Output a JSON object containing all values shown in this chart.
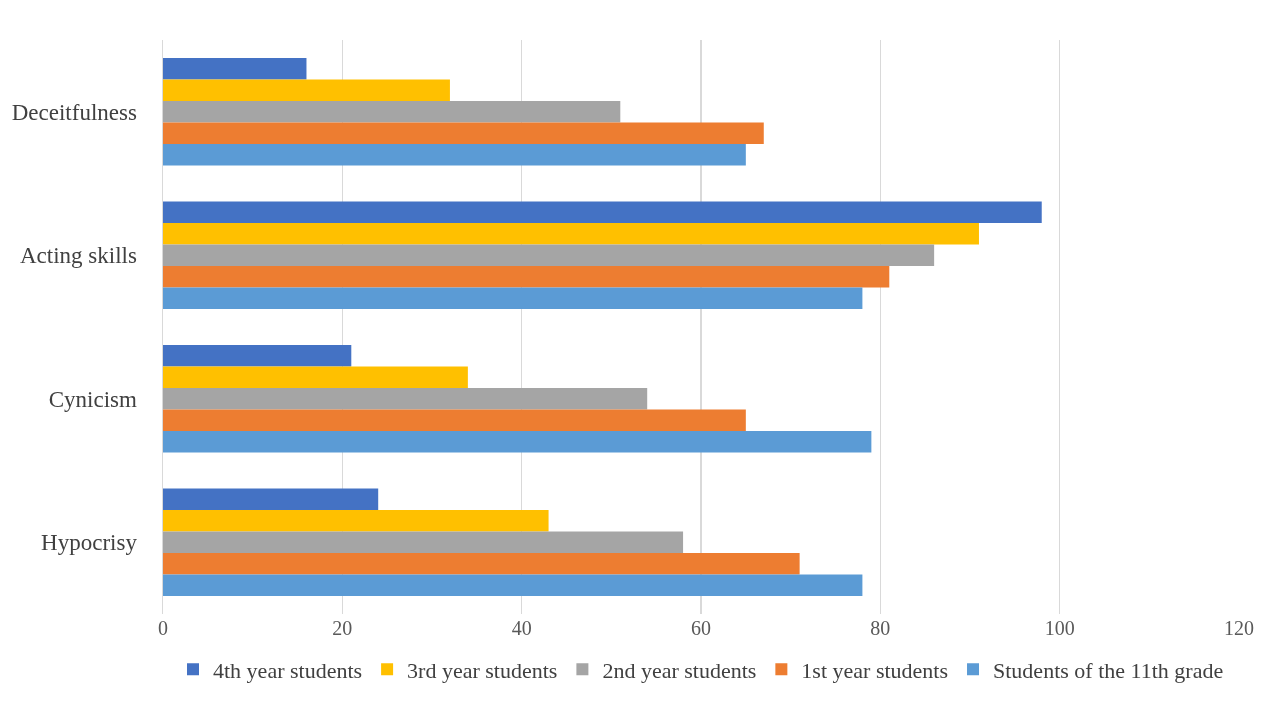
{
  "chart_data": {
    "type": "bar",
    "orientation": "horizontal",
    "categories": [
      "Deceitfulness",
      "Acting skills",
      "Cynicism",
      "Hypocrisy"
    ],
    "series": [
      {
        "name": "4th year students",
        "color": "#4472c4",
        "values": [
          16,
          98,
          21,
          24
        ]
      },
      {
        "name": "3rd year students",
        "color": "#ffc000",
        "values": [
          32,
          91,
          34,
          43
        ]
      },
      {
        "name": "2nd year students",
        "color": "#a5a5a5",
        "values": [
          51,
          86,
          54,
          58
        ]
      },
      {
        "name": "1st year students",
        "color": "#ed7d31",
        "values": [
          67,
          81,
          65,
          71
        ]
      },
      {
        "name": "Students of the 11th grade",
        "color": "#5b9bd5",
        "values": [
          65,
          78,
          79,
          78
        ]
      }
    ],
    "xlim": [
      0,
      120
    ],
    "xticks": [
      0,
      20,
      40,
      60,
      80,
      100,
      120
    ],
    "grid": "x",
    "legend": "bottom"
  }
}
